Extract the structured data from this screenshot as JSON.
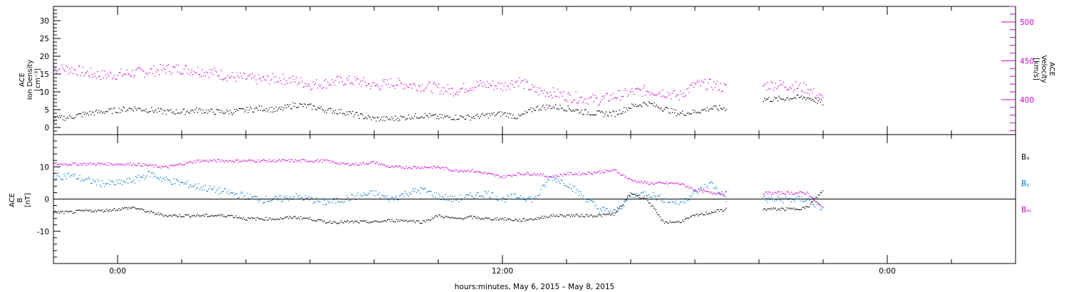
{
  "chart_data": [
    {
      "type": "scatter",
      "panel": "top",
      "ylabel": [
        "ACE",
        "Ion Density",
        "[cm⁻³]"
      ],
      "y2label": [
        "ACE",
        "Velocity",
        "[km/s]"
      ],
      "ylim": [
        -2,
        34
      ],
      "yticks": [
        0,
        5,
        10,
        15,
        20,
        25,
        30
      ],
      "y2lim": [
        355,
        520
      ],
      "y2ticks": [
        400,
        450,
        500
      ],
      "grid": false,
      "colors": {
        "density": "#000000",
        "velocity": "#cc00cc"
      },
      "series": [
        {
          "key": "density",
          "x": [
            -2.0,
            -1.5,
            -1.0,
            -0.5,
            0.0,
            0.5,
            1.0,
            1.5,
            2.0,
            2.5,
            3.0,
            3.5,
            4.0,
            4.5,
            5.0,
            5.5,
            6.0,
            6.5,
            7.0,
            7.5,
            8.0,
            8.5,
            9.0,
            9.5,
            10.0,
            10.5,
            11.0,
            11.5,
            12.0,
            12.5,
            13.0,
            13.5,
            14.0,
            14.5,
            15.0,
            15.5,
            16.0,
            16.5,
            17.0,
            17.5,
            18.0,
            18.5,
            19.0,
            19.5,
            20.0,
            20.5,
            21.0,
            21.5,
            22.0
          ],
          "values": [
            2.5,
            3.0,
            4.0,
            4.5,
            5.0,
            5.5,
            5.0,
            4.5,
            4.5,
            5.0,
            4.5,
            4.5,
            5.0,
            5.5,
            5.0,
            6.5,
            6.0,
            5.0,
            4.5,
            3.5,
            2.5,
            2.5,
            3.0,
            3.5,
            3.0,
            3.0,
            3.0,
            3.5,
            4.0,
            3.0,
            5.5,
            6.0,
            5.5,
            4.5,
            4.0,
            4.0,
            6.0,
            7.0,
            5.5,
            4.0,
            4.5,
            5.5,
            5.5,
            null,
            8.0,
            8.0,
            8.5,
            8.5,
            7.0
          ]
        },
        {
          "key": "velocity",
          "x": [
            -2.0,
            -1.5,
            -1.0,
            -0.5,
            0.0,
            0.5,
            1.0,
            1.5,
            2.0,
            2.5,
            3.0,
            3.5,
            4.0,
            4.5,
            5.0,
            5.5,
            6.0,
            6.5,
            7.0,
            7.5,
            8.0,
            8.5,
            9.0,
            9.5,
            10.0,
            10.5,
            11.0,
            11.5,
            12.0,
            12.5,
            13.0,
            13.5,
            14.0,
            14.5,
            15.0,
            15.5,
            16.0,
            16.5,
            17.0,
            17.5,
            18.0,
            18.5,
            19.0,
            19.5,
            20.0,
            20.5,
            21.0,
            21.5,
            22.0
          ],
          "values": [
            440,
            440,
            435,
            432,
            433,
            435,
            437,
            440,
            440,
            438,
            435,
            430,
            428,
            426,
            428,
            425,
            420,
            422,
            425,
            424,
            418,
            422,
            420,
            418,
            415,
            412,
            418,
            420,
            418,
            425,
            412,
            410,
            405,
            402,
            400,
            405,
            410,
            412,
            410,
            405,
            420,
            420,
            415,
            null,
            418,
            420,
            418,
            415,
            400
          ]
        }
      ]
    },
    {
      "type": "line",
      "panel": "bottom",
      "ylabel": [
        "ACE",
        "B",
        "[nT]"
      ],
      "ylim": [
        -20,
        20
      ],
      "yticks": [
        -10,
        0,
        10
      ],
      "zero_line": true,
      "grid": false,
      "legend": {
        "position": "right",
        "labels": [
          "Bₓ",
          "Bᵧ",
          "Bₘ"
        ]
      },
      "colors": {
        "bx": "#000000",
        "by": "#0077cc",
        "bz": "#cc00cc"
      },
      "series": [
        {
          "key": "bx",
          "x": [
            -2.0,
            -1.5,
            -1.0,
            -0.5,
            0.0,
            0.5,
            1.0,
            1.5,
            2.0,
            2.5,
            3.0,
            3.5,
            4.0,
            4.5,
            5.0,
            5.5,
            6.0,
            6.5,
            7.0,
            7.5,
            8.0,
            8.5,
            9.0,
            9.5,
            10.0,
            10.5,
            11.0,
            11.5,
            12.0,
            12.5,
            13.0,
            13.5,
            14.0,
            14.5,
            15.0,
            15.5,
            16.0,
            16.5,
            17.0,
            17.5,
            18.0,
            18.5,
            19.0,
            19.5,
            20.0,
            20.5,
            21.0,
            21.5,
            22.0
          ],
          "values": [
            -4,
            -4,
            -3.5,
            -3.5,
            -3,
            -2.5,
            -4,
            -5,
            -5,
            -5,
            -5,
            -5,
            -6,
            -6,
            -6,
            -5.5,
            -6,
            -7,
            -7,
            -7,
            -7,
            -6.5,
            -6.5,
            -7,
            -5,
            -6,
            -5.5,
            -6,
            -6,
            -6.5,
            -6,
            -5,
            -5,
            -5,
            -5,
            -4.5,
            2,
            0,
            -7,
            -7,
            -5,
            -4,
            -3,
            null,
            -3,
            -3,
            -3,
            -2.5,
            3
          ]
        },
        {
          "key": "by",
          "x": [
            -2.0,
            -1.5,
            -1.0,
            -0.5,
            0.0,
            0.5,
            1.0,
            1.5,
            2.0,
            2.5,
            3.0,
            3.5,
            4.0,
            4.5,
            5.0,
            5.5,
            6.0,
            6.5,
            7.0,
            7.5,
            8.0,
            8.5,
            9.0,
            9.5,
            10.0,
            10.5,
            11.0,
            11.5,
            12.0,
            12.5,
            13.0,
            13.5,
            14.0,
            14.5,
            15.0,
            15.5,
            16.0,
            16.5,
            17.0,
            17.5,
            18.0,
            18.5,
            19.0,
            19.5,
            20.0,
            20.5,
            21.0,
            21.5,
            22.0
          ],
          "values": [
            7,
            7.5,
            6,
            5,
            5,
            6,
            8,
            6,
            5,
            4,
            3,
            2,
            1,
            0,
            0,
            1,
            0,
            -1,
            0,
            1,
            2,
            0,
            2,
            3,
            1,
            0,
            1,
            2,
            0,
            1,
            0,
            7,
            5,
            1,
            -3,
            -4,
            1,
            2,
            0,
            -1,
            2,
            5,
            0,
            null,
            0,
            0,
            0,
            0,
            -3
          ]
        },
        {
          "key": "bz",
          "x": [
            -2.0,
            -1.5,
            -1.0,
            -0.5,
            0.0,
            0.5,
            1.0,
            1.5,
            2.0,
            2.5,
            3.0,
            3.5,
            4.0,
            4.5,
            5.0,
            5.5,
            6.0,
            6.5,
            7.0,
            7.5,
            8.0,
            8.5,
            9.0,
            9.5,
            10.0,
            10.5,
            11.0,
            11.5,
            12.0,
            12.5,
            13.0,
            13.5,
            14.0,
            14.5,
            15.0,
            15.5,
            16.0,
            16.5,
            17.0,
            17.5,
            18.0,
            18.5,
            19.0,
            19.5,
            20.0,
            20.5,
            21.0,
            21.5,
            22.0
          ],
          "values": [
            11,
            11,
            11,
            11,
            11,
            11,
            10.5,
            10,
            11,
            12,
            12,
            12,
            12,
            12,
            12,
            12,
            12,
            12,
            11,
            11,
            11.5,
            10,
            10,
            10,
            10,
            9,
            9,
            8,
            7,
            8,
            8,
            7,
            8,
            8,
            8.5,
            9,
            6,
            5,
            5,
            5,
            3,
            2,
            2,
            null,
            2,
            2,
            2,
            2,
            -3
          ]
        }
      ]
    }
  ],
  "xaxis": {
    "xlim": [
      -2,
      28
    ],
    "tick_labels": [
      {
        "x": 0,
        "label": "0:00"
      },
      {
        "x": 12,
        "label": "12:00"
      },
      {
        "x": 24,
        "label": "0:00"
      }
    ],
    "xlabel": "hours:minutes, May  6, 2015 – May  8, 2015"
  }
}
